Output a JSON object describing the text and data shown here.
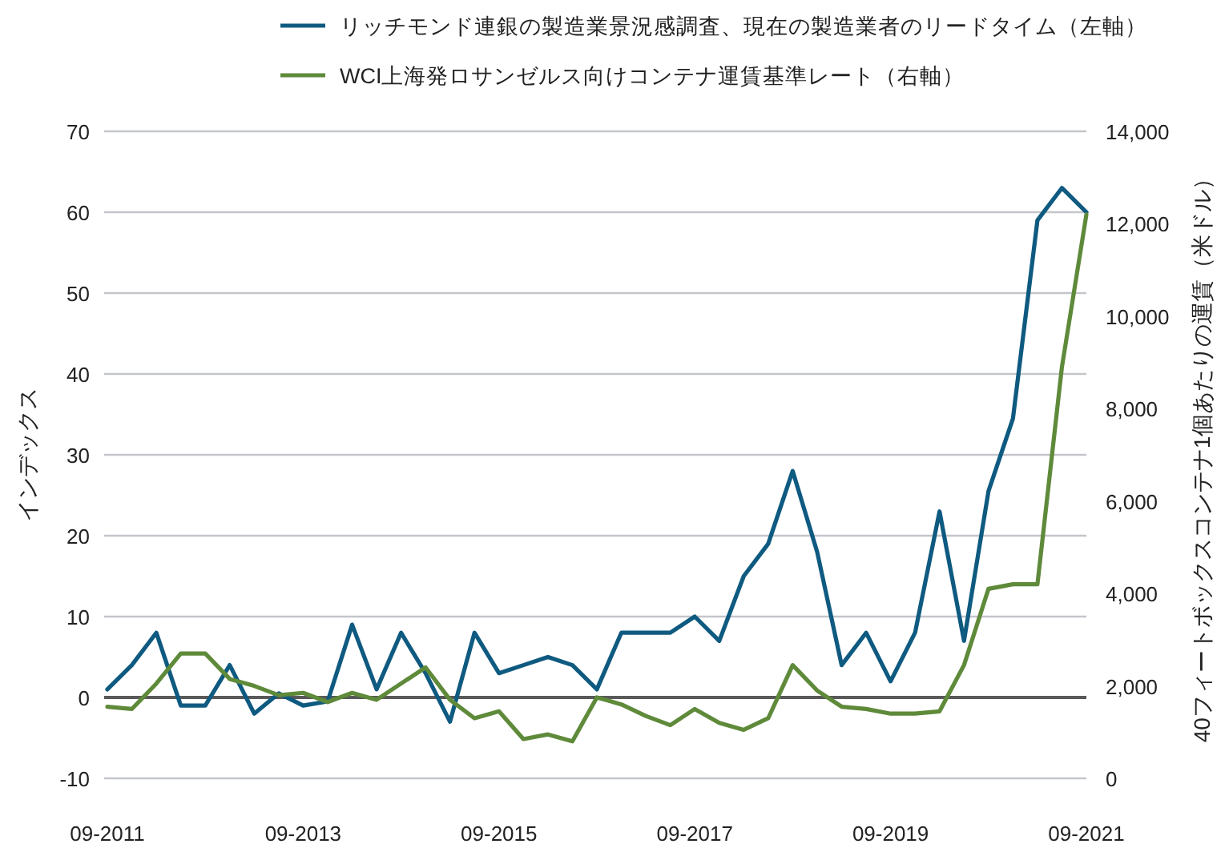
{
  "chart_data": {
    "type": "line",
    "categories": [
      "09-2011",
      null,
      null,
      null,
      null,
      null,
      null,
      null,
      "09-2013",
      null,
      null,
      null,
      null,
      null,
      null,
      null,
      "09-2015",
      null,
      null,
      null,
      null,
      null,
      null,
      null,
      "09-2017",
      null,
      null,
      null,
      null,
      null,
      null,
      null,
      "09-2019",
      null,
      null,
      null,
      null,
      null,
      null,
      null,
      "09-2021"
    ],
    "series": [
      {
        "name": "リッチモンド連銀の製造業景況感調査、現在の製造業者のリードタイム（左軸）",
        "color": "#0f5a80",
        "values": [
          1,
          4,
          8,
          -1,
          -1,
          4,
          -2,
          0.5,
          -1,
          -0.5,
          9,
          1,
          8,
          3,
          -3,
          8,
          3,
          4,
          5,
          4,
          1,
          8,
          8,
          8,
          10,
          7,
          15,
          19,
          28,
          18,
          4,
          8,
          2,
          8,
          23,
          7,
          25.5,
          34.5,
          59,
          63,
          60
        ]
      },
      {
        "name": "WCI上海発ロサンゼルス向けコンテナ運賃基準レート（右軸）",
        "color": "#5e8a3a",
        "axis": "y2",
        "values": [
          1550,
          1500,
          2050,
          2700,
          2700,
          2150,
          2000,
          1800,
          1850,
          1650,
          1850,
          1700,
          2050,
          2400,
          1700,
          1300,
          1450,
          850,
          950,
          800,
          1750,
          1600,
          1350,
          1150,
          1500,
          1200,
          1050,
          1300,
          2450,
          1900,
          1550,
          1500,
          1400,
          1400,
          1450,
          2450,
          4100,
          4200,
          4200,
          8900,
          12200
        ]
      }
    ],
    "ylim": [
      -10,
      70
    ],
    "yticks": [
      -10,
      0,
      10,
      20,
      30,
      40,
      50,
      60,
      70
    ],
    "y2lim": [
      0,
      14000
    ],
    "y2ticks": [
      0,
      {
        "value": 2000,
        "label": "2,000"
      },
      {
        "value": 4000,
        "label": "4,000"
      },
      {
        "value": 6000,
        "label": "6,000"
      },
      {
        "value": 8000,
        "label": "8,000"
      },
      {
        "value": 10000,
        "label": "10,000"
      },
      {
        "value": 12000,
        "label": "12,000"
      },
      {
        "value": 14000,
        "label": "14,000"
      }
    ],
    "ylabel": "インデックス",
    "y2label": "40フィートボックスコンテナ1個あたりの運賃（米ドル）",
    "ref_lines": [
      {
        "axis": "y",
        "value": 0,
        "color": "#595959"
      }
    ],
    "grid": "y",
    "legend": "top"
  }
}
